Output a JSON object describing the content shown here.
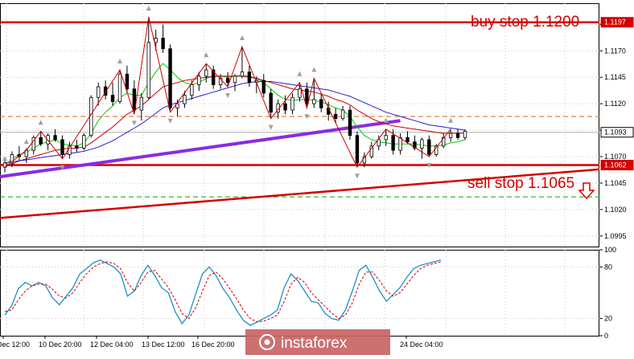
{
  "chart_data": {
    "type": "line",
    "instrument_timeframe": "",
    "main_panel": {
      "y_ticks": [
        "1.1195",
        "1.1170",
        "1.1145",
        "1.1120",
        "1.1095",
        "1.1070",
        "1.1045",
        "1.1020",
        "1.0995"
      ],
      "y_tick_values": [
        1.1195,
        1.117,
        1.1145,
        1.112,
        1.1095,
        1.107,
        1.1045,
        1.102,
        1.0995
      ],
      "ylim": [
        1.0985,
        1.1215
      ],
      "current_price_label": "1.1093",
      "current_price": 1.1093,
      "resistance_label": "1.1197",
      "resistance": 1.1197,
      "support_label": "1.1062",
      "support": 1.1062,
      "buy_annotation": "buy stop 1.1200",
      "sell_annotation": "sell stop 1.1065",
      "dashed_levels": [
        1.1108,
        1.1032
      ],
      "trendline": {
        "start": 1.1012,
        "end": 1.1058
      },
      "candles": [
        [
          1.106,
          1.1068,
          1.1055,
          1.1064
        ],
        [
          1.1064,
          1.1075,
          1.106,
          1.1072
        ],
        [
          1.1072,
          1.108,
          1.1066,
          1.107
        ],
        [
          1.107,
          1.1078,
          1.1064,
          1.1076
        ],
        [
          1.1076,
          1.109,
          1.1072,
          1.1088
        ],
        [
          1.1088,
          1.1094,
          1.108,
          1.1082
        ],
        [
          1.1082,
          1.1092,
          1.1076,
          1.109
        ],
        [
          1.109,
          1.1096,
          1.1084,
          1.1086
        ],
        [
          1.1086,
          1.109,
          1.1068,
          1.1072
        ],
        [
          1.1072,
          1.1084,
          1.1068,
          1.108
        ],
        [
          1.108,
          1.1086,
          1.1074,
          1.1078
        ],
        [
          1.1078,
          1.1092,
          1.1076,
          1.109
        ],
        [
          1.109,
          1.1128,
          1.1088,
          1.1126
        ],
        [
          1.1126,
          1.114,
          1.1118,
          1.1136
        ],
        [
          1.1136,
          1.1142,
          1.1124,
          1.1128
        ],
        [
          1.1128,
          1.114,
          1.1118,
          1.1122
        ],
        [
          1.1122,
          1.1152,
          1.112,
          1.1148
        ],
        [
          1.1148,
          1.1156,
          1.113,
          1.1134
        ],
        [
          1.1134,
          1.1142,
          1.111,
          1.1114
        ],
        [
          1.1114,
          1.113,
          1.1104,
          1.1126
        ],
        [
          1.1126,
          1.1202,
          1.1124,
          1.1178
        ],
        [
          1.1178,
          1.119,
          1.117,
          1.1182
        ],
        [
          1.1182,
          1.1195,
          1.1168,
          1.1172
        ],
        [
          1.1172,
          1.1176,
          1.1112,
          1.1116
        ],
        [
          1.1116,
          1.1124,
          1.1108,
          1.112
        ],
        [
          1.112,
          1.1132,
          1.1116,
          1.1128
        ],
        [
          1.1128,
          1.1142,
          1.1124,
          1.1138
        ],
        [
          1.1138,
          1.115,
          1.1132,
          1.1146
        ],
        [
          1.1146,
          1.1158,
          1.114,
          1.1152
        ],
        [
          1.1152,
          1.1156,
          1.1134,
          1.1138
        ],
        [
          1.1138,
          1.1148,
          1.1134,
          1.1144
        ],
        [
          1.1144,
          1.115,
          1.1136,
          1.114
        ],
        [
          1.114,
          1.1148,
          1.1132,
          1.1146
        ],
        [
          1.1146,
          1.1174,
          1.1144,
          1.115
        ],
        [
          1.115,
          1.1156,
          1.1136,
          1.114
        ],
        [
          1.114,
          1.1146,
          1.113,
          1.1142
        ],
        [
          1.1142,
          1.1148,
          1.1126,
          1.113
        ],
        [
          1.113,
          1.1134,
          1.1106,
          1.1112
        ],
        [
          1.1112,
          1.1124,
          1.1106,
          1.112
        ],
        [
          1.112,
          1.1128,
          1.111,
          1.1114
        ],
        [
          1.1114,
          1.113,
          1.111,
          1.1126
        ],
        [
          1.1126,
          1.114,
          1.1122,
          1.1134
        ],
        [
          1.1134,
          1.114,
          1.1116,
          1.112
        ],
        [
          1.112,
          1.1144,
          1.1116,
          1.1124
        ],
        [
          1.1124,
          1.113,
          1.1112,
          1.1116
        ],
        [
          1.1116,
          1.1122,
          1.1104,
          1.111
        ],
        [
          1.111,
          1.1116,
          1.1102,
          1.1106
        ],
        [
          1.1106,
          1.1118,
          1.1104,
          1.1114
        ],
        [
          1.1114,
          1.1118,
          1.1086,
          1.109
        ],
        [
          1.109,
          1.1094,
          1.106,
          1.1064
        ],
        [
          1.1064,
          1.1074,
          1.106,
          1.107
        ],
        [
          1.107,
          1.1084,
          1.1068,
          1.108
        ],
        [
          1.108,
          1.109,
          1.1076,
          1.1086
        ],
        [
          1.1086,
          1.1096,
          1.108,
          1.109
        ],
        [
          1.109,
          1.1096,
          1.1072,
          1.1076
        ],
        [
          1.1076,
          1.1092,
          1.1072,
          1.1088
        ],
        [
          1.1088,
          1.1094,
          1.1082,
          1.1084
        ],
        [
          1.1084,
          1.109,
          1.1076,
          1.1078
        ],
        [
          1.1078,
          1.1088,
          1.1068,
          1.1086
        ],
        [
          1.1086,
          1.109,
          1.107,
          1.1072
        ],
        [
          1.1072,
          1.1082,
          1.107,
          1.108
        ],
        [
          1.108,
          1.1092,
          1.1078,
          1.1088
        ],
        [
          1.1088,
          1.1096,
          1.1084,
          1.1092
        ],
        [
          1.1092,
          1.1096,
          1.1086,
          1.1088
        ],
        [
          1.1088,
          1.1096,
          1.1086,
          1.1094
        ]
      ],
      "moving_averages": [
        {
          "color": "#00cc00",
          "values": [
            1.1062,
            1.1068,
            1.1072,
            1.1074,
            1.1078,
            1.1082,
            1.1084,
            1.1086,
            1.1082,
            1.1081,
            1.108,
            1.1083,
            1.1092,
            1.1104,
            1.1112,
            1.1118,
            1.1126,
            1.113,
            1.1128,
            1.1128,
            1.114,
            1.115,
            1.1158,
            1.1152,
            1.1145,
            1.114,
            1.1138,
            1.114,
            1.1144,
            1.1146,
            1.1146,
            1.1145,
            1.1146,
            1.1147,
            1.1146,
            1.1144,
            1.114,
            1.1134,
            1.1128,
            1.1124,
            1.1123,
            1.1124,
            1.1124,
            1.1123,
            1.1122,
            1.1119,
            1.1116,
            1.1114,
            1.1108,
            1.1098,
            1.109,
            1.1086,
            1.1084,
            1.1083,
            1.1082,
            1.1082,
            1.1082,
            1.1082,
            1.1081,
            1.108,
            1.108,
            1.1081,
            1.1083,
            1.1084,
            1.1086
          ]
        },
        {
          "color": "#cc0000",
          "values": [
            1.106,
            1.1063,
            1.1066,
            1.1068,
            1.107,
            1.1072,
            1.1074,
            1.1076,
            1.1077,
            1.1078,
            1.1078,
            1.1079,
            1.1083,
            1.1088,
            1.1093,
            1.1098,
            1.1104,
            1.111,
            1.1114,
            1.1118,
            1.1124,
            1.113,
            1.1136,
            1.1138,
            1.114,
            1.1142,
            1.1143,
            1.1144,
            1.1145,
            1.1146,
            1.1146,
            1.1146,
            1.1146,
            1.1146,
            1.1145,
            1.1144,
            1.1142,
            1.114,
            1.1138,
            1.1136,
            1.1134,
            1.1133,
            1.1132,
            1.1131,
            1.1129,
            1.1127,
            1.1124,
            1.1122,
            1.1119,
            1.1114,
            1.111,
            1.1106,
            1.1103,
            1.1101,
            1.1099,
            1.1098,
            1.1097,
            1.1096,
            1.1095,
            1.1094,
            1.1093,
            1.1092,
            1.1092,
            1.1092,
            1.1092
          ]
        },
        {
          "color": "#2020cc",
          "values": [
            1.1064,
            1.1065,
            1.1066,
            1.1067,
            1.1068,
            1.1069,
            1.107,
            1.1071,
            1.1072,
            1.1073,
            1.1074,
            1.1075,
            1.1077,
            1.1079,
            1.1082,
            1.1085,
            1.1089,
            1.1093,
            1.1097,
            1.1101,
            1.1106,
            1.1111,
            1.1116,
            1.1119,
            1.1121,
            1.1123,
            1.1125,
            1.1127,
            1.1129,
            1.1131,
            1.1133,
            1.1135,
            1.1137,
            1.1139,
            1.114,
            1.1141,
            1.1141,
            1.1141,
            1.114,
            1.1139,
            1.1138,
            1.1137,
            1.1136,
            1.1135,
            1.1134,
            1.1133,
            1.1131,
            1.1129,
            1.1127,
            1.1124,
            1.1121,
            1.1118,
            1.1115,
            1.1112,
            1.111,
            1.1108,
            1.1106,
            1.1104,
            1.1102,
            1.11,
            1.1099,
            1.1098,
            1.1097,
            1.1096,
            1.1095
          ]
        }
      ],
      "long_trend": {
        "color": "#8a2be2",
        "start": 1.1051,
        "end": 1.1104
      },
      "zigzag": {
        "color": "#cc0000",
        "points": [
          [
            0,
            1.106
          ],
          [
            3,
            1.1076
          ],
          [
            5,
            1.1094
          ],
          [
            8,
            1.1068
          ],
          [
            16,
            1.1152
          ],
          [
            18,
            1.111
          ],
          [
            20,
            1.1202
          ],
          [
            23,
            1.1112
          ],
          [
            28,
            1.1158
          ],
          [
            31,
            1.1136
          ],
          [
            33,
            1.1174
          ],
          [
            37,
            1.1106
          ],
          [
            41,
            1.114
          ],
          [
            42,
            1.1116
          ],
          [
            43,
            1.1144
          ],
          [
            49,
            1.106
          ],
          [
            53,
            1.1096
          ],
          [
            59,
            1.107
          ],
          [
            62,
            1.1096
          ]
        ]
      }
    },
    "oscillator": {
      "ylim": [
        0,
        100
      ],
      "y_ticks": [
        "100",
        "80",
        "20",
        "0"
      ],
      "y_tick_values": [
        100,
        80,
        20,
        0
      ],
      "main": {
        "color": "#1e90c8",
        "values": [
          24,
          35,
          55,
          62,
          58,
          62,
          58,
          44,
          36,
          46,
          56,
          72,
          78,
          85,
          88,
          84,
          80,
          72,
          46,
          52,
          70,
          82,
          70,
          56,
          50,
          28,
          14,
          24,
          48,
          72,
          80,
          70,
          55,
          44,
          30,
          18,
          12,
          16,
          20,
          24,
          30,
          56,
          72,
          64,
          52,
          40,
          38,
          26,
          20,
          18,
          30,
          52,
          76,
          82,
          68,
          52,
          40,
          48,
          56,
          68,
          78,
          82,
          84,
          86,
          88
        ]
      },
      "signal": {
        "color": "#cc0000",
        "values": [
          28,
          30,
          42,
          52,
          58,
          60,
          60,
          54,
          46,
          44,
          50,
          62,
          72,
          80,
          84,
          86,
          84,
          78,
          62,
          52,
          62,
          74,
          76,
          66,
          56,
          42,
          26,
          20,
          32,
          52,
          70,
          74,
          66,
          55,
          43,
          30,
          20,
          16,
          17,
          20,
          24,
          40,
          60,
          68,
          62,
          50,
          42,
          34,
          26,
          20,
          24,
          38,
          60,
          74,
          74,
          64,
          52,
          46,
          50,
          60,
          70,
          78,
          82,
          84,
          86
        ]
      }
    },
    "x_ticks": [
      "Dec 12:00",
      "10 Dec 20:00",
      "12 Dec 04:00",
      "13 Dec 12:00",
      "16 Dec 20:00",
      "24 Dec 04:00"
    ],
    "watermark": "instaforex"
  }
}
